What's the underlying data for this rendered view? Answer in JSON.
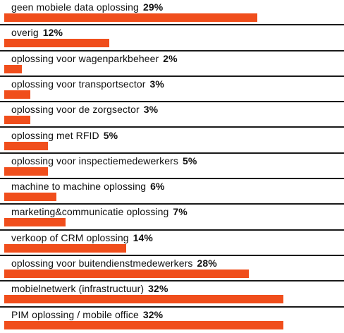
{
  "chart_data": {
    "type": "bar",
    "orientation": "horizontal",
    "bar_color": "#f04e1c",
    "divider_color": "#1a1a1a",
    "xlim": [
      0,
      32
    ],
    "rows": [
      {
        "label": "geen mobiele data oplossing",
        "value": 29,
        "value_label": "29%"
      },
      {
        "label": "overig",
        "value": 12,
        "value_label": "12%"
      },
      {
        "label": "oplossing voor wagenparkbeheer",
        "value": 2,
        "value_label": "2%"
      },
      {
        "label": "oplossing voor transportsector",
        "value": 3,
        "value_label": "3%"
      },
      {
        "label": "oplossing voor de zorgsector",
        "value": 3,
        "value_label": "3%"
      },
      {
        "label": "oplossing met RFID",
        "value": 5,
        "value_label": "5%"
      },
      {
        "label": "oplossing voor inspectiemedewerkers",
        "value": 5,
        "value_label": "5%"
      },
      {
        "label": "machine to machine oplossing",
        "value": 6,
        "value_label": "6%"
      },
      {
        "label": "marketing&communicatie oplossing",
        "value": 7,
        "value_label": "7%"
      },
      {
        "label": "verkoop of CRM oplossing",
        "value": 14,
        "value_label": "14%"
      },
      {
        "label": "oplossing voor buitendienstmedewerkers",
        "value": 28,
        "value_label": "28%"
      },
      {
        "label": "mobielnetwerk (infrastructuur)",
        "value": 32,
        "value_label": "32%"
      },
      {
        "label": "PIM oplossing / mobile office",
        "value": 32,
        "value_label": "32%"
      }
    ]
  }
}
